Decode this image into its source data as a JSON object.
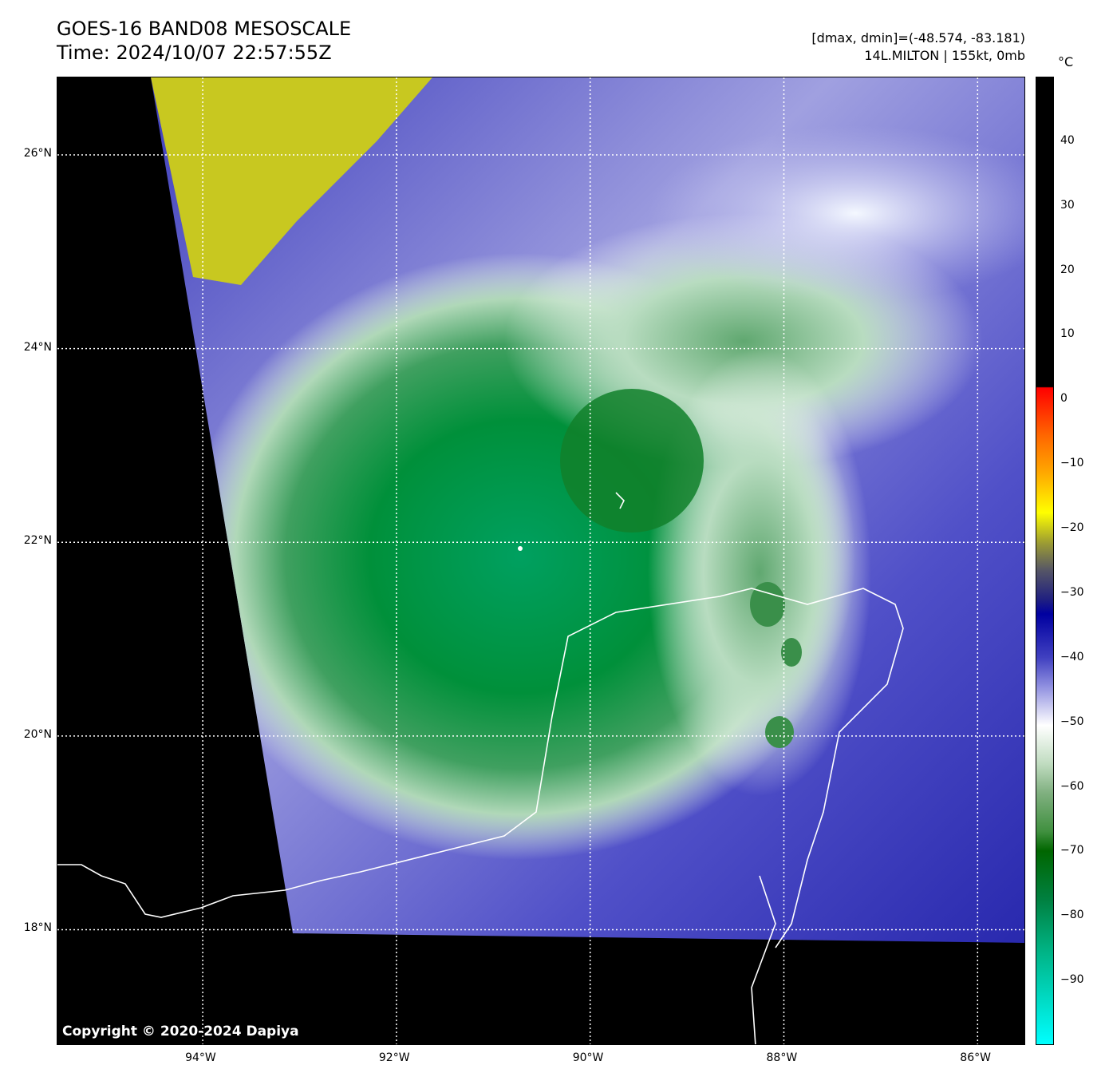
{
  "header": {
    "title": "GOES-16 BAND08 MESOSCALE",
    "time": "Time: 2024/10/07 22:57:55Z",
    "range": "[dmax, dmin]=(-48.574, -83.181)",
    "storm": "14L.MILTON | 155kt, 0mb"
  },
  "map": {
    "copyright": "Copyright © 2020-2024 Dapiya",
    "lat_ticks": [
      {
        "v": 26,
        "label": "26°N"
      },
      {
        "v": 24,
        "label": "24°N"
      },
      {
        "v": 22,
        "label": "22°N"
      },
      {
        "v": 20,
        "label": "20°N"
      },
      {
        "v": 18,
        "label": "18°N"
      }
    ],
    "lon_ticks": [
      {
        "v": -94,
        "label": "94°W"
      },
      {
        "v": -92,
        "label": "92°W"
      },
      {
        "v": -90,
        "label": "90°W"
      },
      {
        "v": -88,
        "label": "88°W"
      },
      {
        "v": -86,
        "label": "86°W"
      }
    ],
    "lat_range": [
      16.8,
      26.8
    ],
    "lon_range": [
      -95.5,
      -85.5
    ]
  },
  "colorbar": {
    "unit": "°C",
    "range": [
      -100,
      50
    ],
    "ticks": [
      {
        "v": 40,
        "label": "40"
      },
      {
        "v": 30,
        "label": "30"
      },
      {
        "v": 20,
        "label": "20"
      },
      {
        "v": 10,
        "label": "10"
      },
      {
        "v": 0,
        "label": "0"
      },
      {
        "v": -10,
        "label": "−10"
      },
      {
        "v": -20,
        "label": "−20"
      },
      {
        "v": -30,
        "label": "−30"
      },
      {
        "v": -40,
        "label": "−40"
      },
      {
        "v": -50,
        "label": "−50"
      },
      {
        "v": -60,
        "label": "−60"
      },
      {
        "v": -70,
        "label": "−70"
      },
      {
        "v": -80,
        "label": "−80"
      },
      {
        "v": -90,
        "label": "−90"
      }
    ]
  }
}
